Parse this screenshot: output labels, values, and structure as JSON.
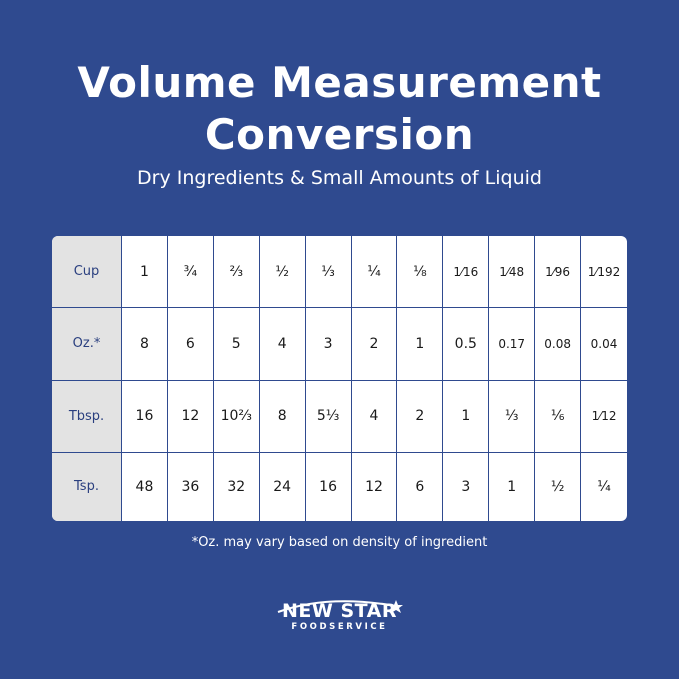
{
  "title_line1": "Volume Measurement",
  "title_line2": "Conversion",
  "subtitle": "Dry Ingredients & Small Amounts of Liquid",
  "table": {
    "rows": [
      {
        "label": "Cup",
        "values": [
          "1",
          "¾",
          "⅔",
          "½",
          "⅓",
          "¼",
          "⅛",
          "1⁄16",
          "1⁄48",
          "1⁄96",
          "1⁄192"
        ]
      },
      {
        "label": "Oz.*",
        "values": [
          "8",
          "6",
          "5",
          "4",
          "3",
          "2",
          "1",
          "0.5",
          "0.17",
          "0.08",
          "0.04"
        ]
      },
      {
        "label": "Tbsp.",
        "values": [
          "16",
          "12",
          "10⅔",
          "8",
          "5⅓",
          "4",
          "2",
          "1",
          "⅓",
          "⅙",
          "1⁄12"
        ]
      },
      {
        "label": "Tsp.",
        "values": [
          "48",
          "36",
          "32",
          "24",
          "16",
          "12",
          "6",
          "3",
          "1",
          "½",
          "¼"
        ]
      }
    ]
  },
  "footnote": "*Oz. may vary based on density of ingredient",
  "logo": {
    "name": "NEW STAR",
    "tagline": "FOODSERVICE"
  },
  "colors": {
    "background": "#2f4a8f",
    "header_cell": "#e3e3e3",
    "header_text": "#2a3f7f"
  }
}
